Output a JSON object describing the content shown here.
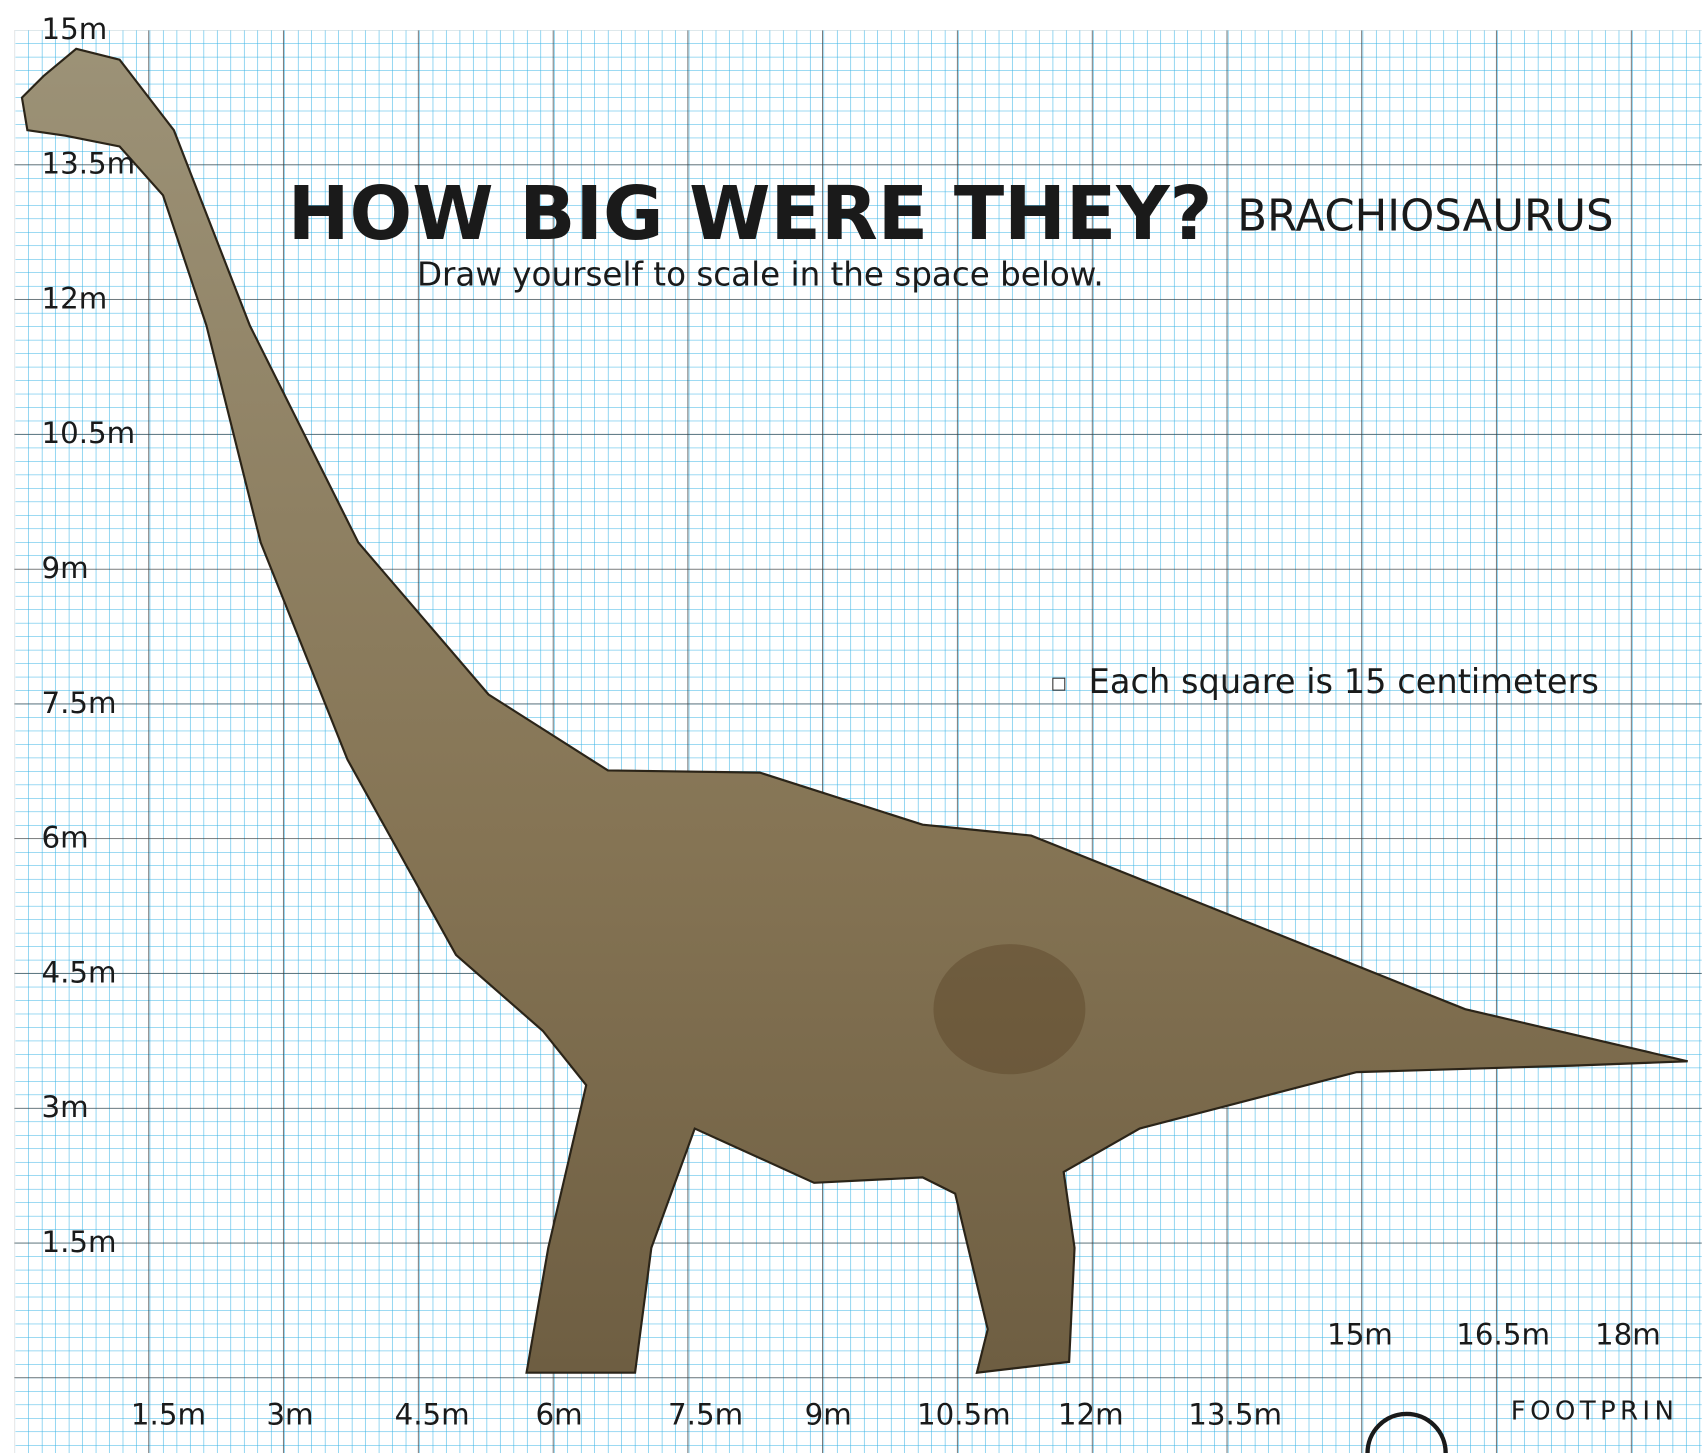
{
  "header": {
    "title": "HOW BIG WERE THEY?",
    "subtitle": "Draw yourself to scale in the space below.",
    "species": "BRACHIOSAURUS"
  },
  "note": "Each square is 15 centimeters",
  "y_labels": [
    "15m",
    "13.5m",
    "12m",
    "10.5m",
    "9m",
    "7.5m",
    "6m",
    "4.5m",
    "3m",
    "1.5m"
  ],
  "x_labels": [
    "1.5m",
    "3m",
    "4.5m",
    "6m",
    "7.5m",
    "9m",
    "10.5m",
    "12m",
    "13.5m"
  ],
  "x_labels_upper": [
    "15m",
    "16.5m",
    "18m"
  ],
  "logo": {
    "text": "FOOTPRIN"
  }
}
